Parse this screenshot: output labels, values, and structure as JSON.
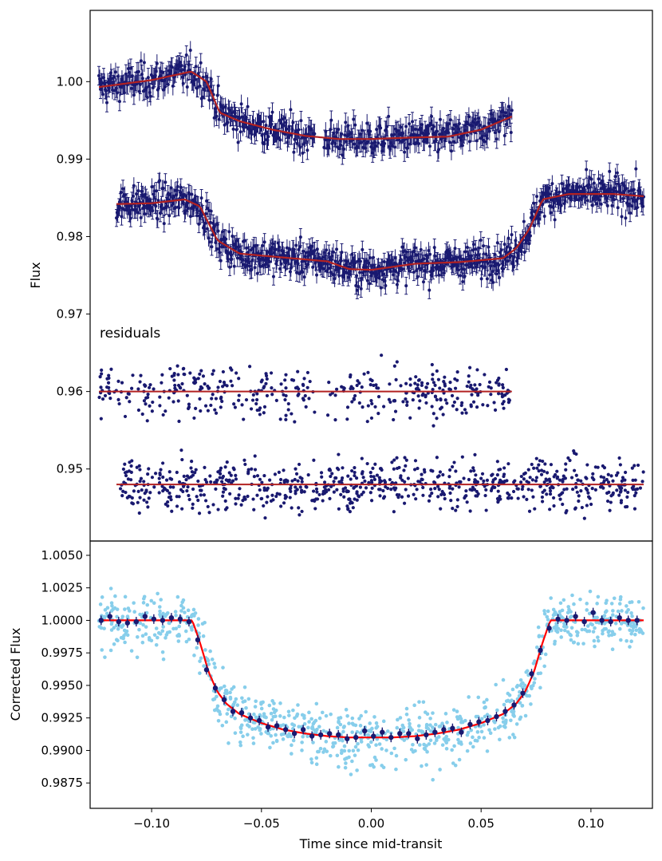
{
  "chart_data": [
    {
      "type": "scatter",
      "panel": "top",
      "ylabel": "Flux",
      "xlim": [
        -0.128,
        0.128
      ],
      "ylim": [
        0.9407,
        1.0092
      ],
      "yticks": [
        "1.00",
        "0.99",
        "0.98",
        "0.97",
        "0.96",
        "0.95"
      ],
      "ytick_values": [
        1.0,
        0.99,
        0.98,
        0.97,
        0.96,
        0.95
      ],
      "annotation": "residuals",
      "colors": {
        "points": "#191970",
        "model": "#b22222"
      },
      "series": [
        {
          "name": "light curve 1",
          "x_range": [
            -0.124,
            0.064
          ],
          "model_x": [
            -0.124,
            -0.1,
            -0.082,
            -0.075,
            -0.069,
            -0.06,
            -0.045,
            -0.03,
            -0.015,
            0.0,
            0.02,
            0.035,
            0.05,
            0.064
          ],
          "model_y": [
            0.9993,
            1.0002,
            1.0013,
            1.0,
            0.996,
            0.9949,
            0.9938,
            0.993,
            0.9926,
            0.9926,
            0.9928,
            0.9929,
            0.9938,
            0.9955
          ],
          "errorbar": 0.0012
        },
        {
          "name": "light curve 2",
          "x_range": [
            -0.116,
            0.124
          ],
          "model_x": [
            -0.116,
            -0.1,
            -0.085,
            -0.078,
            -0.07,
            -0.06,
            -0.04,
            -0.02,
            -0.01,
            0.0,
            0.02,
            0.04,
            0.06,
            0.066,
            0.072,
            0.078,
            0.09,
            0.11,
            0.124
          ],
          "model_y": [
            0.9842,
            0.9843,
            0.9848,
            0.9839,
            0.9795,
            0.9778,
            0.9773,
            0.9768,
            0.9758,
            0.9757,
            0.9765,
            0.9767,
            0.9772,
            0.9785,
            0.981,
            0.9848,
            0.9855,
            0.9855,
            0.9852
          ],
          "errorbar": 0.0011
        },
        {
          "name": "residuals 1",
          "x_range": [
            -0.124,
            0.064
          ],
          "offset": 0.96,
          "model_x": [
            -0.124,
            0.064
          ],
          "model_y": [
            0.96,
            0.96
          ]
        },
        {
          "name": "residuals 2",
          "x_range": [
            -0.116,
            0.124
          ],
          "offset": 0.948,
          "model_x": [
            -0.116,
            0.124
          ],
          "model_y": [
            0.948,
            0.948
          ]
        }
      ]
    },
    {
      "type": "scatter",
      "panel": "bottom",
      "xlabel": "Time since mid-transit",
      "ylabel": "Corrected Flux",
      "xlim": [
        -0.128,
        0.128
      ],
      "ylim": [
        0.98555,
        1.0061
      ],
      "xticks": [
        "−0.10",
        "−0.05",
        "0.00",
        "0.05",
        "0.10"
      ],
      "xtick_values": [
        -0.1,
        -0.05,
        0.0,
        0.05,
        0.1
      ],
      "yticks": [
        "1.0050",
        "1.0025",
        "1.0000",
        "0.9975",
        "0.9950",
        "0.9925",
        "0.9900",
        "0.9875"
      ],
      "ytick_values": [
        1.005,
        1.0025,
        1.0,
        0.9975,
        0.995,
        0.9925,
        0.99,
        0.9875
      ],
      "colors": {
        "raw": "#87ceeb",
        "binned": "#191970",
        "model": "#ff0000"
      },
      "model": {
        "x": [
          -0.124,
          -0.0815,
          -0.078,
          -0.074,
          -0.07,
          -0.066,
          -0.06,
          -0.05,
          -0.04,
          -0.03,
          -0.02,
          -0.01,
          0.0,
          0.01,
          0.02,
          0.03,
          0.04,
          0.05,
          0.06,
          0.066,
          0.07,
          0.074,
          0.078,
          0.0815,
          0.124
        ],
        "y": [
          1.0,
          1.0,
          0.9983,
          0.996,
          0.9945,
          0.9936,
          0.9928,
          0.9921,
          0.9916,
          0.9913,
          0.9911,
          0.991,
          0.991,
          0.991,
          0.9911,
          0.9913,
          0.9916,
          0.9921,
          0.9928,
          0.9936,
          0.9945,
          0.996,
          0.9983,
          1.0,
          1.0
        ]
      },
      "binned": {
        "x": [
          -0.123,
          -0.119,
          -0.115,
          -0.111,
          -0.107,
          -0.103,
          -0.099,
          -0.095,
          -0.091,
          -0.087,
          -0.083,
          -0.079,
          -0.075,
          -0.071,
          -0.067,
          -0.063,
          -0.059,
          -0.055,
          -0.051,
          -0.047,
          -0.043,
          -0.039,
          -0.035,
          -0.031,
          -0.027,
          -0.023,
          -0.019,
          -0.015,
          -0.011,
          -0.007,
          -0.003,
          0.001,
          0.005,
          0.009,
          0.013,
          0.017,
          0.021,
          0.025,
          0.029,
          0.033,
          0.037,
          0.041,
          0.045,
          0.049,
          0.053,
          0.057,
          0.061,
          0.065,
          0.069,
          0.073,
          0.077,
          0.081,
          0.085,
          0.089,
          0.093,
          0.097,
          0.101,
          0.105,
          0.109,
          0.113,
          0.117,
          0.121
        ],
        "y": [
          1.0,
          1.0003,
          0.9999,
          0.9998,
          0.9999,
          1.0003,
          1.0001,
          1.0,
          1.0002,
          1.0001,
          0.9999,
          0.9985,
          0.9962,
          0.9948,
          0.9939,
          0.993,
          0.9929,
          0.9925,
          0.9923,
          0.9918,
          0.9919,
          0.9916,
          0.9913,
          0.9916,
          0.9911,
          0.9912,
          0.9913,
          0.9912,
          0.9909,
          0.991,
          0.9915,
          0.9911,
          0.9914,
          0.991,
          0.9913,
          0.9913,
          0.9909,
          0.9912,
          0.9914,
          0.9916,
          0.9917,
          0.9914,
          0.992,
          0.9922,
          0.9923,
          0.9926,
          0.993,
          0.9935,
          0.9944,
          0.9959,
          0.9977,
          0.9994,
          1.0001,
          1.0,
          1.0003,
          0.9999,
          1.0006,
          1.0,
          0.9999,
          1.0002,
          1.0,
          1.0
        ]
      }
    }
  ]
}
